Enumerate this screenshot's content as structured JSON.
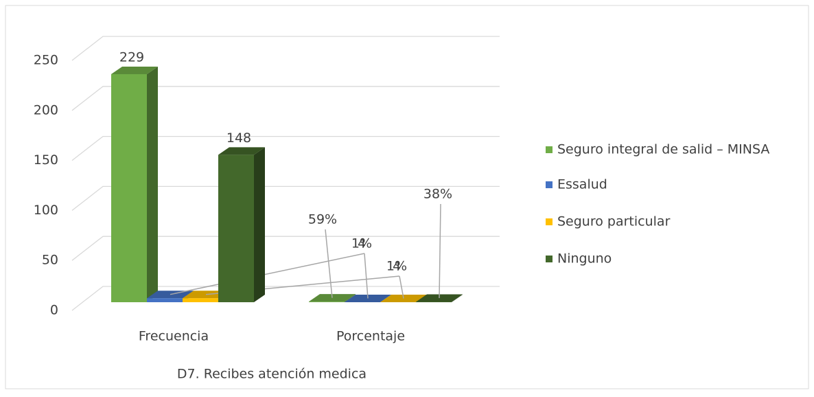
{
  "chart_data": {
    "type": "bar3d",
    "x_label": "D7. Recibes atención medica",
    "categories": [
      "Frecuencia",
      "Porcentaje"
    ],
    "series": [
      {
        "name": "Seguro integral de salid – MINSA",
        "color": "#70ad47",
        "values": [
          229,
          0.59
        ],
        "value_labels": [
          "229",
          "59%"
        ]
      },
      {
        "name": "Essalud",
        "color": "#4472c4",
        "values": [
          4,
          0.01
        ],
        "value_labels": [
          "4",
          "1%"
        ]
      },
      {
        "name": "Seguro particular",
        "color": "#ffc000",
        "values": [
          4,
          0.01
        ],
        "value_labels": [
          "4",
          "1%"
        ]
      },
      {
        "name": "Ninguno",
        "color": "#43682b",
        "values": [
          148,
          0.38
        ],
        "value_labels": [
          "148",
          "38%"
        ]
      }
    ],
    "ylim": [
      0,
      250
    ],
    "yticks": [
      0,
      50,
      100,
      150,
      200,
      250
    ],
    "grid": true,
    "legend": "right"
  }
}
